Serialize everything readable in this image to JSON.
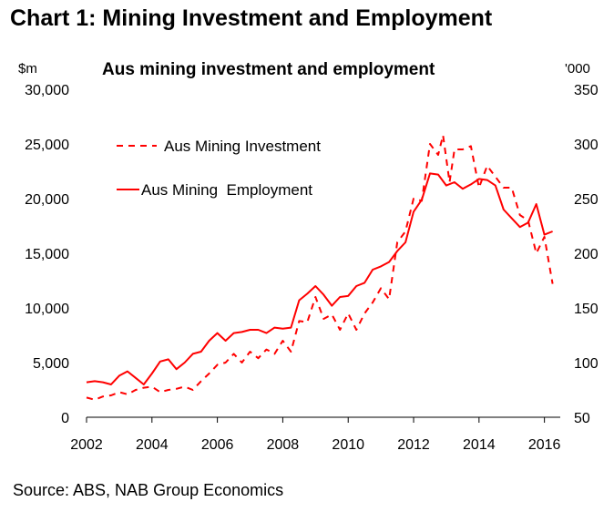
{
  "page": {
    "title": "Chart 1: Mining Investment and Employment",
    "source": "Source: ABS, NAB Group Economics"
  },
  "chart_data": {
    "type": "line",
    "title": "Aus mining investment and employment",
    "left_unit": "$m",
    "right_unit": "'000",
    "x_range": [
      2002,
      2016.4
    ],
    "left_axis": {
      "ylim": [
        0,
        30000
      ],
      "ticks": [
        "0",
        "5,000",
        "10,000",
        "15,000",
        "20,000",
        "25,000",
        "30,000"
      ],
      "tick_values": [
        0,
        5000,
        10000,
        15000,
        20000,
        25000,
        30000
      ]
    },
    "right_axis": {
      "ylim": [
        50,
        350
      ],
      "ticks": [
        "50",
        "100",
        "150",
        "200",
        "250",
        "300",
        "350"
      ],
      "tick_values": [
        50,
        100,
        150,
        200,
        250,
        300,
        350
      ]
    },
    "x_ticks": [
      "2002",
      "2004",
      "2006",
      "2008",
      "2010",
      "2012",
      "2014",
      "2016"
    ],
    "x_tick_values": [
      2002,
      2004,
      2006,
      2008,
      2010,
      2012,
      2014,
      2016
    ],
    "grid": false,
    "legend_position": "top-left",
    "series": [
      {
        "name": "Aus Mining Investment",
        "axis": "left",
        "style": "dashed",
        "color": "#ff0000",
        "x": [
          2002,
          2002.25,
          2002.5,
          2002.75,
          2003,
          2003.25,
          2003.5,
          2003.75,
          2004,
          2004.25,
          2004.5,
          2004.75,
          2005,
          2005.25,
          2005.5,
          2005.75,
          2006,
          2006.25,
          2006.5,
          2006.75,
          2007,
          2007.25,
          2007.5,
          2007.75,
          2008,
          2008.25,
          2008.5,
          2008.75,
          2009,
          2009.25,
          2009.5,
          2009.75,
          2010,
          2010.25,
          2010.5,
          2010.75,
          2011,
          2011.25,
          2011.5,
          2011.75,
          2012,
          2012.25,
          2012.5,
          2012.75,
          2012.9,
          2013.1,
          2013.25,
          2013.5,
          2013.75,
          2014,
          2014.25,
          2014.5,
          2014.75,
          2015,
          2015.25,
          2015.5,
          2015.75,
          2016,
          2016.25
        ],
        "values": [
          1800,
          1600,
          1900,
          2000,
          2300,
          2100,
          2500,
          2700,
          2800,
          2300,
          2500,
          2600,
          2800,
          2500,
          3300,
          4000,
          4800,
          5000,
          5800,
          5000,
          6000,
          5400,
          6200,
          5800,
          7000,
          6000,
          8800,
          8700,
          11000,
          9000,
          9400,
          8000,
          9500,
          8000,
          9500,
          10500,
          11800,
          10800,
          16000,
          17000,
          20000,
          19800,
          25000,
          24000,
          25800,
          21500,
          24500,
          24500,
          24800,
          21000,
          23000,
          22000,
          21000,
          21000,
          18500,
          18000,
          15000,
          16500,
          12200
        ]
      },
      {
        "name": "Aus Mining  Employment",
        "axis": "right",
        "style": "solid",
        "color": "#ff0000",
        "x": [
          2002,
          2002.25,
          2002.5,
          2002.75,
          2003,
          2003.25,
          2003.5,
          2003.75,
          2004,
          2004.25,
          2004.5,
          2004.75,
          2005,
          2005.25,
          2005.5,
          2005.75,
          2006,
          2006.25,
          2006.5,
          2006.75,
          2007,
          2007.25,
          2007.5,
          2007.75,
          2008,
          2008.25,
          2008.5,
          2008.75,
          2009,
          2009.25,
          2009.5,
          2009.75,
          2010,
          2010.25,
          2010.5,
          2010.75,
          2011,
          2011.25,
          2011.5,
          2011.75,
          2012,
          2012.25,
          2012.5,
          2012.75,
          2013,
          2013.25,
          2013.5,
          2013.75,
          2014,
          2014.25,
          2014.5,
          2014.75,
          2015,
          2015.25,
          2015.5,
          2015.75,
          2016,
          2016.25
        ],
        "values": [
          82,
          83,
          82,
          80,
          88,
          92,
          86,
          80,
          90,
          101,
          103,
          94,
          100,
          108,
          110,
          120,
          127,
          120,
          127,
          128,
          130,
          130,
          127,
          132,
          131,
          132,
          157,
          163,
          170,
          162,
          152,
          160,
          161,
          170,
          173,
          185,
          188,
          192,
          202,
          210,
          238,
          249,
          273,
          272,
          262,
          265,
          259,
          263,
          268,
          267,
          262,
          240,
          232,
          224,
          228,
          245,
          217,
          220
        ]
      }
    ]
  }
}
